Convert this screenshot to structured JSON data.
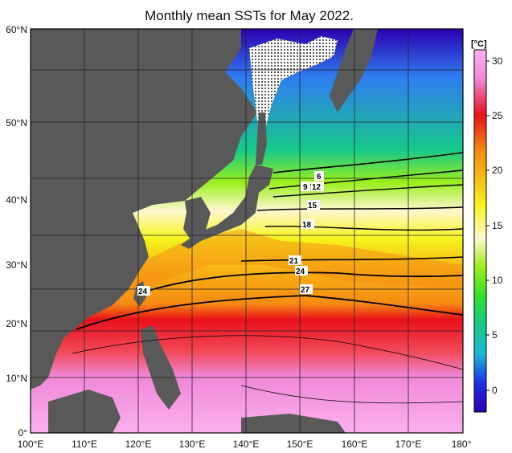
{
  "title": "Monthly mean SSTs for May 2022.",
  "colorbar": {
    "unit": "[°C]",
    "ticks": [
      "30",
      "25",
      "20",
      "15",
      "10",
      "5",
      "0"
    ],
    "range": [
      -2,
      31
    ],
    "colors": [
      "#2b00b0",
      "#1f2fe6",
      "#2f7df0",
      "#19b7d8",
      "#16c98a",
      "#2fe02a",
      "#9bef1a",
      "#f5f51c",
      "#f7c015",
      "#f68b12",
      "#f04a0c",
      "#e8101a",
      "#f087d8",
      "#fbb1ee"
    ]
  },
  "axes": {
    "x_labels": [
      "100°E",
      "110°E",
      "120°E",
      "130°E",
      "140°E",
      "150°E",
      "160°E",
      "170°E",
      "180°"
    ],
    "y_labels": [
      "60°N",
      "50°N",
      "40°N",
      "30°N",
      "20°N",
      "10°N",
      "0°"
    ]
  },
  "contour_labels": [
    "6",
    "9",
    "12",
    "15",
    "18",
    "21",
    "24",
    "24",
    "27"
  ],
  "colors": {
    "land": "#595959",
    "background": "#ffffff"
  }
}
